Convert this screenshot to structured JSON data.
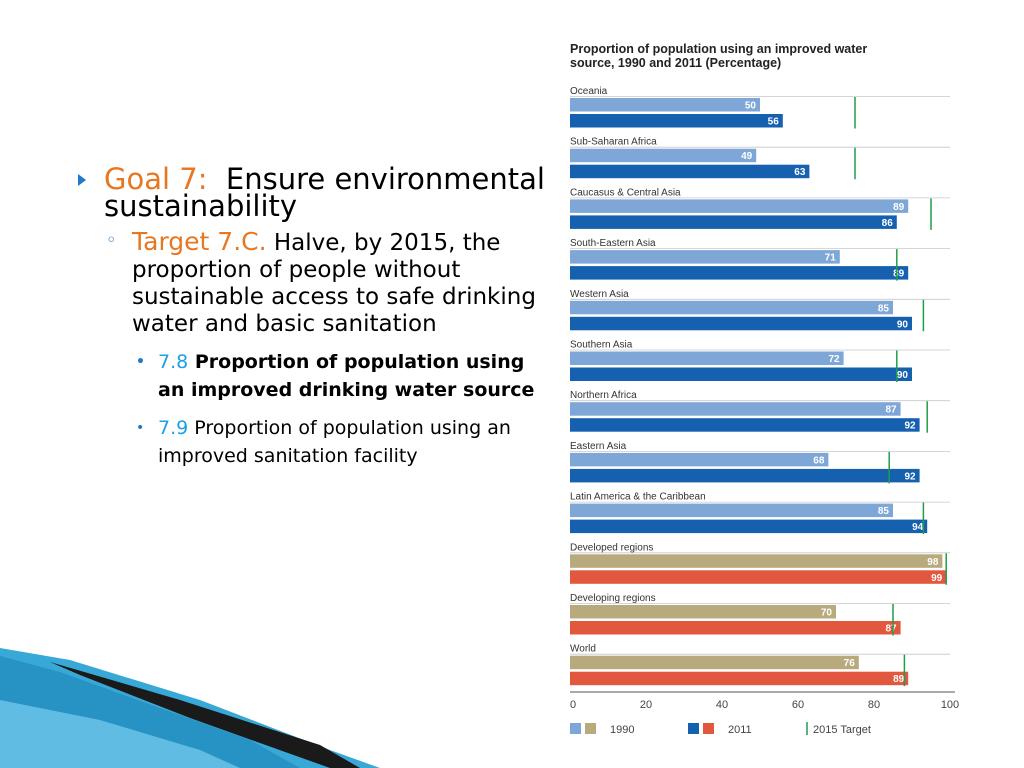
{
  "slide": {
    "goal": {
      "label": "Goal 7:",
      "text": "Ensure environmental sustainability"
    },
    "target": {
      "label": "Target 7.C.",
      "text": "Halve, by 2015, the proportion of people without sustainable access to safe drinking water and basic sanitation"
    },
    "indicators": [
      {
        "num": "7.8",
        "text": "Proportion of population using an improved drinking water source",
        "bold": true
      },
      {
        "num": "7.9",
        "text": "Proportion of population using an improved sanitation facility",
        "bold": false
      }
    ]
  },
  "chart_data": {
    "type": "bar",
    "orientation": "horizontal",
    "title": "Proportion of population using an improved water source, 1990 and 2011 (Percentage)",
    "xlim": [
      0,
      100
    ],
    "xticks": [
      "0",
      "20",
      "40",
      "60",
      "80",
      "100"
    ],
    "categories": [
      "Oceania",
      "Sub-Saharan Africa",
      "Caucasus & Central Asia",
      "South-Eastern Asia",
      "Western Asia",
      "Southern Asia",
      "Northern Africa",
      "Eastern Asia",
      "Latin America & the Caribbean",
      "Developed regions",
      "Developing regions",
      "World"
    ],
    "group": [
      "region",
      "region",
      "region",
      "region",
      "region",
      "region",
      "region",
      "region",
      "region",
      "aggregate",
      "aggregate",
      "aggregate"
    ],
    "series": [
      {
        "name": "1990",
        "values": [
          50,
          49,
          89,
          71,
          85,
          72,
          87,
          68,
          85,
          98,
          70,
          76
        ]
      },
      {
        "name": "2011",
        "values": [
          56,
          63,
          86,
          89,
          90,
          90,
          92,
          92,
          94,
          99,
          87,
          89
        ]
      },
      {
        "name": "2015 Target",
        "values": [
          75,
          75,
          95,
          86,
          93,
          86,
          94,
          84,
          93,
          99,
          85,
          88
        ]
      }
    ],
    "legend": {
      "placement": "bottom-left"
    },
    "colors": {
      "region_1990": "#7ea7d8",
      "region_2011": "#1660b0",
      "aggregate_1990": "#b8aa7c",
      "aggregate_2011": "#e2583e",
      "target": "#1e9e4a",
      "label": "#ffffff",
      "category_text": "#333333",
      "axis": "#555555"
    }
  }
}
